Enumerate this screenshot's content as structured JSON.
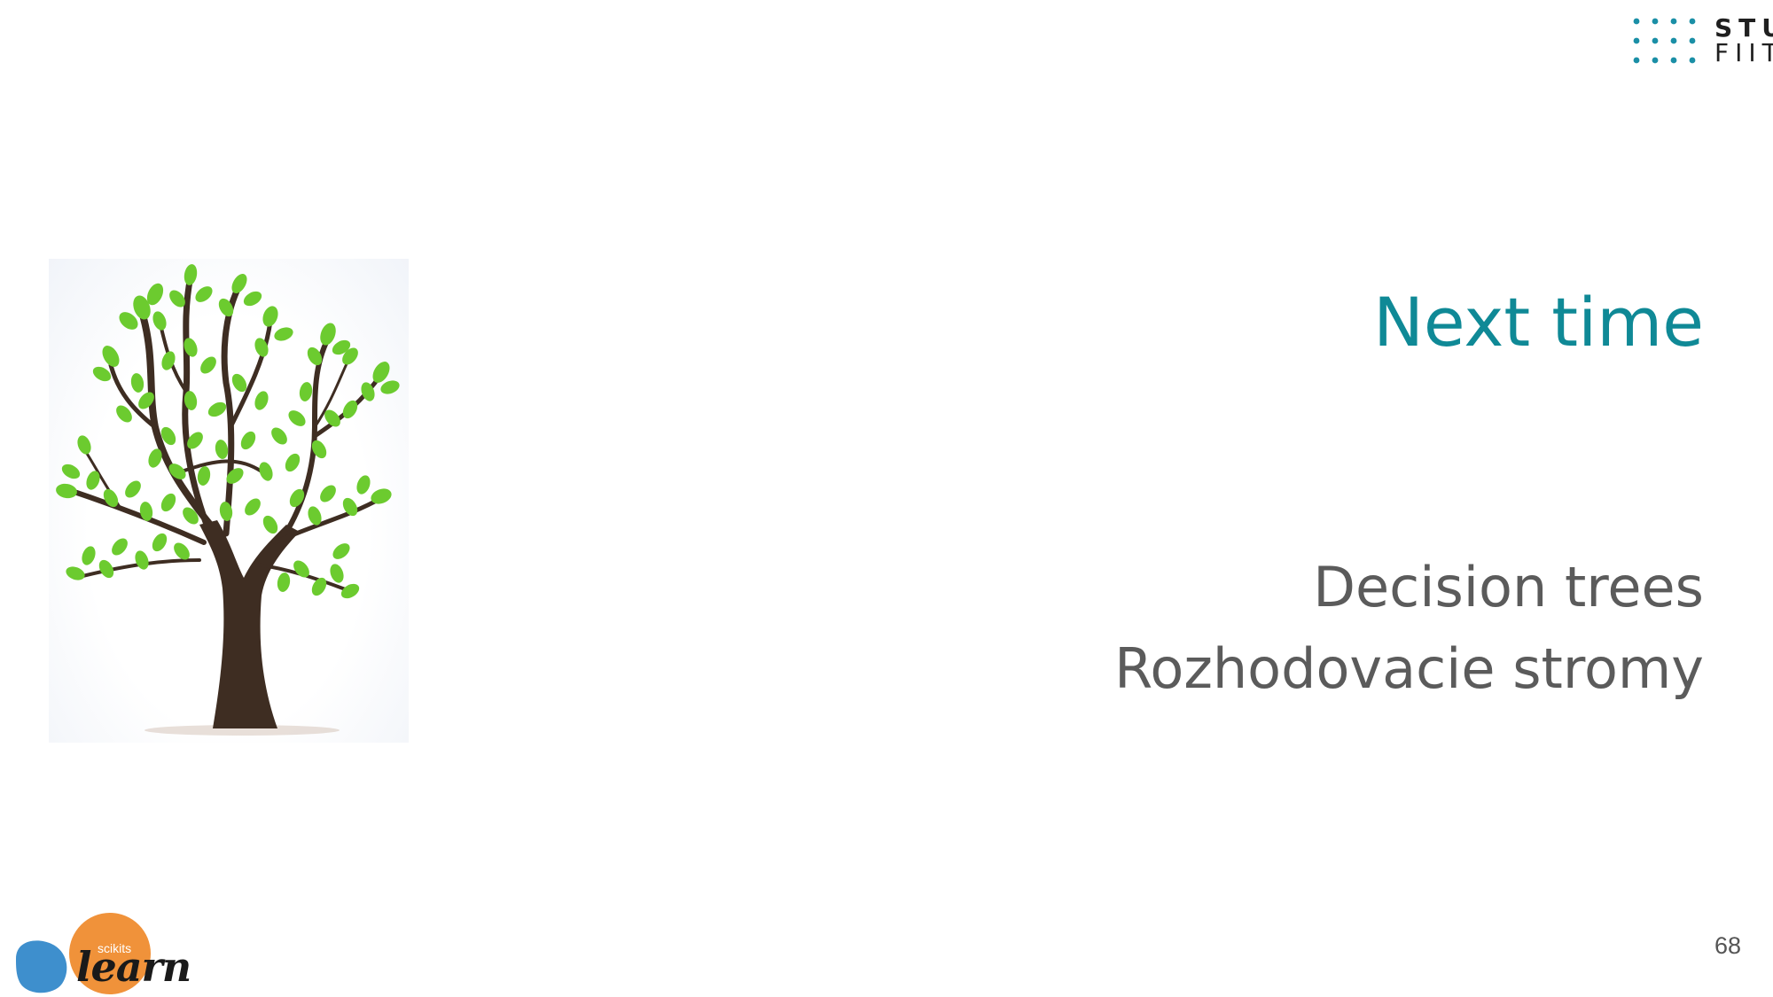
{
  "slide": {
    "title": "Next time",
    "lines": [
      "Decision trees",
      "Rozhodovacie stromy"
    ],
    "page_number": "68"
  },
  "logo_stu": {
    "line1": "STU",
    "line2": "FIIT",
    "dot_color": "#1a8fa6"
  },
  "logo_sklearn": {
    "small_text": "scikits",
    "big_text": "learn",
    "orange": "#f0923a",
    "blue": "#3e8fcd"
  },
  "colors": {
    "title": "#0f8996",
    "body": "#5b5b5b",
    "trunk": "#3e2d22",
    "leaf": "#6ccb2f"
  },
  "image": {
    "icon": "tree-icon"
  }
}
